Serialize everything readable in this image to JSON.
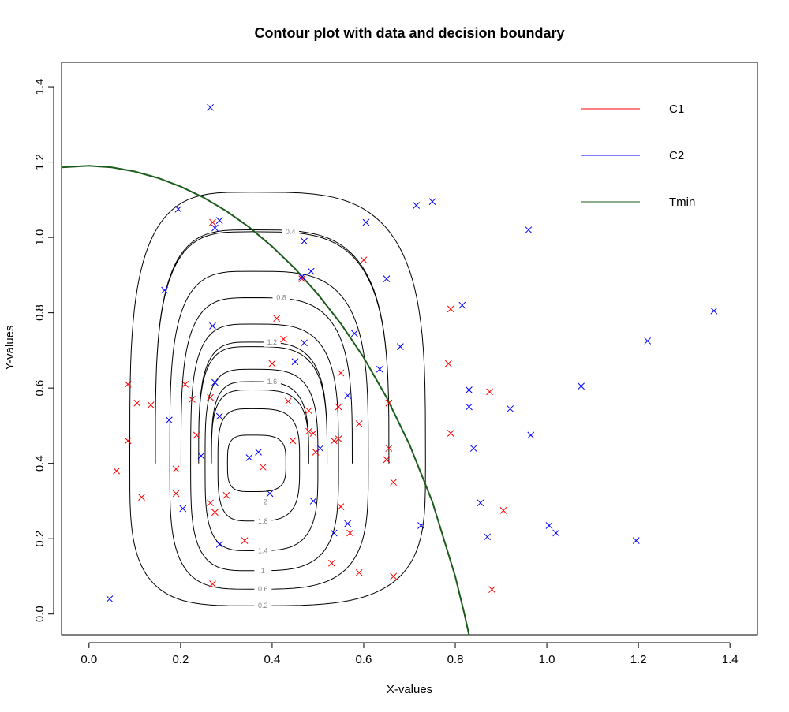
{
  "chart_data": {
    "type": "scatter",
    "title": "Contour plot with data and decision boundary",
    "xlabel": "X-values",
    "ylabel": "Y-values",
    "xlim": [
      -0.06,
      1.46
    ],
    "ylim": [
      -0.055,
      1.465
    ],
    "x_ticks": [
      "0.0",
      "0.2",
      "0.4",
      "0.6",
      "0.8",
      "1.0",
      "1.2",
      "1.4"
    ],
    "y_ticks": [
      "0.0",
      "0.2",
      "0.4",
      "0.6",
      "0.8",
      "1.0",
      "1.2",
      "1.4"
    ],
    "grid": false,
    "legend_position": "top-right",
    "marker": "×",
    "series": [
      {
        "name": "C1",
        "color": "#ff0000",
        "points": [
          [
            0.27,
            1.04
          ],
          [
            0.6,
            0.94
          ],
          [
            0.465,
            0.89
          ],
          [
            0.79,
            0.81
          ],
          [
            0.41,
            0.785
          ],
          [
            0.425,
            0.73
          ],
          [
            0.4,
            0.665
          ],
          [
            0.785,
            0.665
          ],
          [
            0.085,
            0.61
          ],
          [
            0.21,
            0.61
          ],
          [
            0.55,
            0.64
          ],
          [
            0.105,
            0.56
          ],
          [
            0.135,
            0.555
          ],
          [
            0.225,
            0.57
          ],
          [
            0.265,
            0.575
          ],
          [
            0.435,
            0.565
          ],
          [
            0.48,
            0.54
          ],
          [
            0.545,
            0.55
          ],
          [
            0.59,
            0.505
          ],
          [
            0.655,
            0.56
          ],
          [
            0.875,
            0.59
          ],
          [
            0.79,
            0.48
          ],
          [
            0.085,
            0.46
          ],
          [
            0.235,
            0.475
          ],
          [
            0.445,
            0.46
          ],
          [
            0.48,
            0.485
          ],
          [
            0.49,
            0.48
          ],
          [
            0.495,
            0.43
          ],
          [
            0.545,
            0.465
          ],
          [
            0.535,
            0.46
          ],
          [
            0.65,
            0.41
          ],
          [
            0.655,
            0.44
          ],
          [
            0.06,
            0.38
          ],
          [
            0.19,
            0.385
          ],
          [
            0.38,
            0.39
          ],
          [
            0.115,
            0.31
          ],
          [
            0.19,
            0.32
          ],
          [
            0.265,
            0.295
          ],
          [
            0.275,
            0.27
          ],
          [
            0.3,
            0.315
          ],
          [
            0.55,
            0.285
          ],
          [
            0.665,
            0.35
          ],
          [
            0.57,
            0.215
          ],
          [
            0.905,
            0.275
          ],
          [
            0.34,
            0.195
          ],
          [
            0.53,
            0.135
          ],
          [
            0.59,
            0.11
          ],
          [
            0.665,
            0.1
          ],
          [
            0.27,
            0.08
          ],
          [
            0.88,
            0.065
          ]
        ]
      },
      {
        "name": "C2",
        "color": "#0000ff",
        "points": [
          [
            0.265,
            1.345
          ],
          [
            0.195,
            1.075
          ],
          [
            0.285,
            1.045
          ],
          [
            0.275,
            1.025
          ],
          [
            0.605,
            1.04
          ],
          [
            0.715,
            1.085
          ],
          [
            0.75,
            1.095
          ],
          [
            0.96,
            1.02
          ],
          [
            0.47,
            0.99
          ],
          [
            0.465,
            0.895
          ],
          [
            0.485,
            0.91
          ],
          [
            0.65,
            0.89
          ],
          [
            0.165,
            0.86
          ],
          [
            0.815,
            0.82
          ],
          [
            1.365,
            0.805
          ],
          [
            0.27,
            0.765
          ],
          [
            0.58,
            0.745
          ],
          [
            0.47,
            0.72
          ],
          [
            0.68,
            0.71
          ],
          [
            1.22,
            0.725
          ],
          [
            0.45,
            0.67
          ],
          [
            0.635,
            0.65
          ],
          [
            0.275,
            0.615
          ],
          [
            0.565,
            0.58
          ],
          [
            0.83,
            0.595
          ],
          [
            1.075,
            0.605
          ],
          [
            0.175,
            0.515
          ],
          [
            0.285,
            0.525
          ],
          [
            0.83,
            0.55
          ],
          [
            0.92,
            0.545
          ],
          [
            0.965,
            0.475
          ],
          [
            0.245,
            0.42
          ],
          [
            0.35,
            0.415
          ],
          [
            0.37,
            0.43
          ],
          [
            0.505,
            0.44
          ],
          [
            0.84,
            0.44
          ],
          [
            0.395,
            0.32
          ],
          [
            0.49,
            0.3
          ],
          [
            0.205,
            0.28
          ],
          [
            0.565,
            0.24
          ],
          [
            0.725,
            0.235
          ],
          [
            0.855,
            0.295
          ],
          [
            0.535,
            0.215
          ],
          [
            1.005,
            0.235
          ],
          [
            1.02,
            0.215
          ],
          [
            0.285,
            0.185
          ],
          [
            0.87,
            0.205
          ],
          [
            1.195,
            0.195
          ],
          [
            0.045,
            0.04
          ]
        ]
      }
    ],
    "decision_boundary": {
      "name": "Tmin",
      "color": "#1a5c1a",
      "points": [
        [
          -0.06,
          1.186
        ],
        [
          0.0,
          1.19
        ],
        [
          0.05,
          1.186
        ],
        [
          0.1,
          1.175
        ],
        [
          0.15,
          1.158
        ],
        [
          0.2,
          1.135
        ],
        [
          0.25,
          1.106
        ],
        [
          0.3,
          1.07
        ],
        [
          0.35,
          1.027
        ],
        [
          0.4,
          0.976
        ],
        [
          0.45,
          0.917
        ],
        [
          0.5,
          0.849
        ],
        [
          0.55,
          0.771
        ],
        [
          0.6,
          0.681
        ],
        [
          0.65,
          0.575
        ],
        [
          0.7,
          0.45
        ],
        [
          0.75,
          0.298
        ],
        [
          0.8,
          0.1
        ],
        [
          0.82,
          0.0
        ],
        [
          0.83,
          -0.055
        ]
      ]
    },
    "contour": {
      "center": [
        0.355,
        0.4
      ],
      "levels": [
        "0.2",
        "0.4",
        "0.6",
        "0.8",
        "1",
        "1.2",
        "1.4",
        "1.6",
        "1.8",
        "2"
      ],
      "label_positions": {
        "0.2": [
          0.38,
          0.022
        ],
        "0.4": [
          0.44,
          1.015
        ],
        "0.6": [
          0.38,
          0.066
        ],
        "0.8": [
          0.42,
          0.84
        ],
        "1": [
          0.38,
          0.115
        ],
        "1.2": [
          0.4,
          0.722
        ],
        "1.4": [
          0.38,
          0.168
        ],
        "1.6": [
          0.4,
          0.617
        ],
        "1.8": [
          0.38,
          0.247
        ],
        "2": [
          0.385,
          0.298
        ]
      },
      "line_color": "#000000",
      "label_color": "#888888"
    }
  }
}
